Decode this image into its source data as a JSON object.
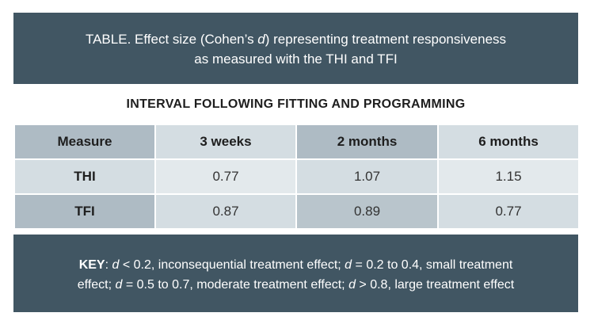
{
  "header": {
    "title_line1_pre": "TABLE. Effect size (Cohen’s ",
    "title_line1_var": "d",
    "title_line1_post": ") representing treatment responsiveness",
    "title_line2": "as measured with the THI and TFI"
  },
  "subtitle": "INTERVAL FOLLOWING FITTING AND PROGRAMMING",
  "table": {
    "columns": [
      "Measure",
      "3 weeks",
      "2 months",
      "6 months"
    ],
    "rows": [
      {
        "label": "THI",
        "values": [
          "0.77",
          "1.07",
          "1.15"
        ]
      },
      {
        "label": "TFI",
        "values": [
          "0.87",
          "0.89",
          "0.77"
        ]
      }
    ]
  },
  "key": {
    "label": "KEY",
    "var": "d",
    "seg1": " < 0.2, inconsequential treatment effect; ",
    "seg2": " = 0.2 to 0.4, small treatment",
    "seg3": "effect; ",
    "seg4": " = 0.5 to 0.7, moderate treatment effect; ",
    "seg5": " > 0.8, large treatment effect"
  },
  "colors": {
    "header_bg": "#415663",
    "cell_dark": "#aebbc4",
    "cell_light": "#d4dde2"
  }
}
